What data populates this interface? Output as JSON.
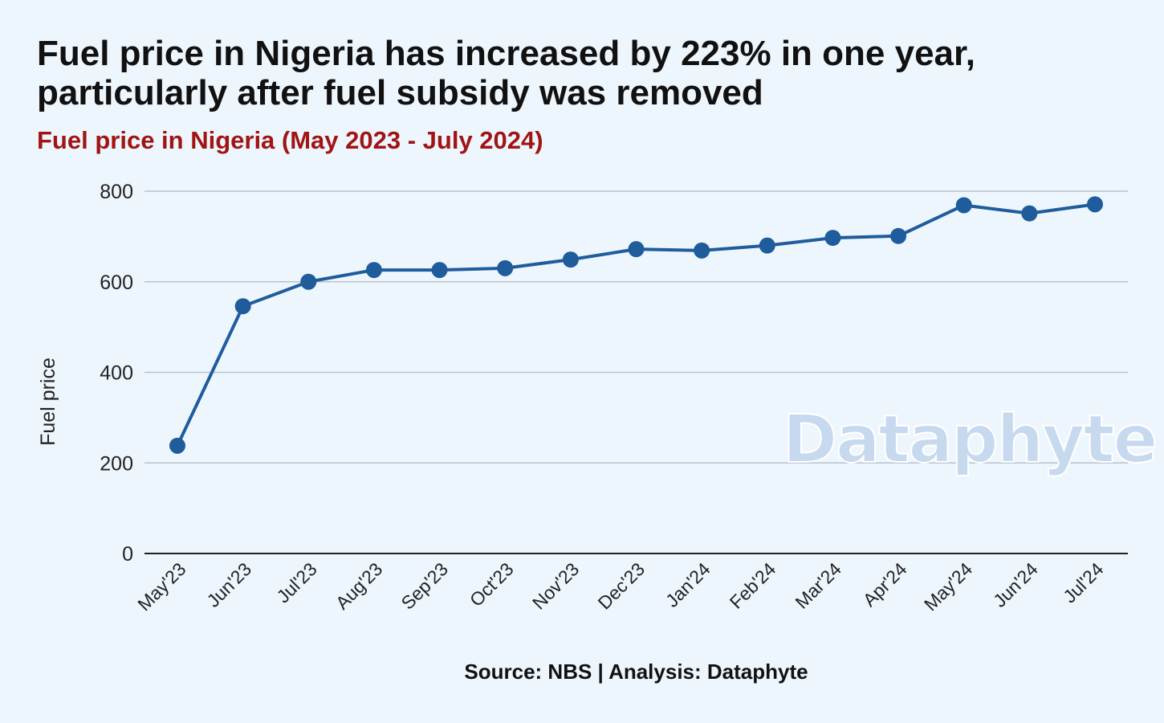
{
  "title": "Fuel price in Nigeria has increased by 223% in one year, particularly after fuel subsidy was removed",
  "subtitle": "Fuel price in Nigeria (May 2023 - July 2024)",
  "source": "Source: NBS | Analysis: Dataphyte",
  "watermark": "Dataphyte",
  "colors": {
    "line": "#1f5c9c",
    "grid": "#b9c2cc",
    "subtitle": "#a01414",
    "background": "#eef6fd"
  },
  "chart_data": {
    "type": "line",
    "title": "Fuel price in Nigeria has increased by 223% in one year, particularly after fuel subsidy was removed",
    "subtitle": "Fuel price in Nigeria (May 2023 - July 2024)",
    "xlabel": "",
    "ylabel": "Fuel price",
    "categories": [
      "May'23",
      "Jun'23",
      "Jul'23",
      "Aug'23",
      "Sep'23",
      "Oct'23",
      "Nov'23",
      "Dec'23",
      "Jan'24",
      "Feb'24",
      "Mar'24",
      "Apr'24",
      "May'24",
      "Jun'24",
      "Jul'24"
    ],
    "series": [
      {
        "values": [
          238,
          546,
          600,
          626,
          626,
          630,
          649,
          672,
          669,
          680,
          697,
          701,
          769,
          751,
          771
        ]
      }
    ],
    "yticks": [
      0,
      200,
      400,
      600,
      800
    ],
    "ylim": [
      0,
      800
    ],
    "grid": true,
    "legend": "none"
  }
}
